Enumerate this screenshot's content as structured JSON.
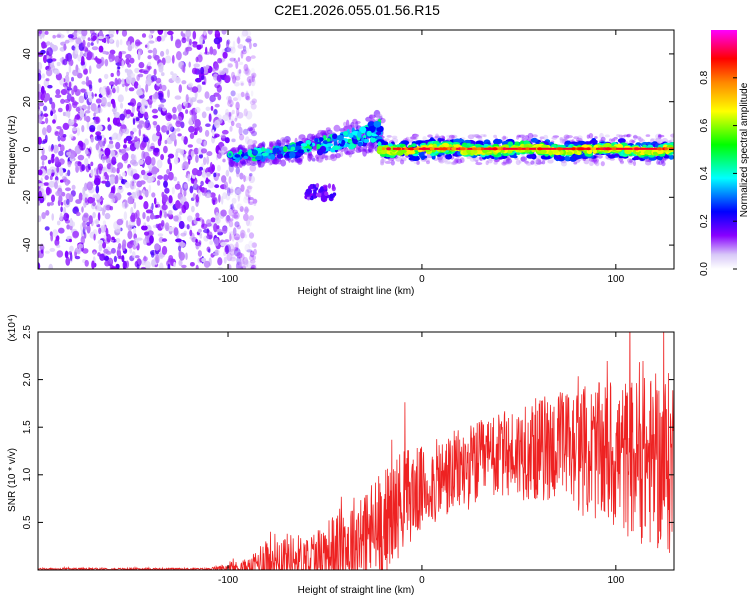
{
  "figure": {
    "title": "C2E1.2026.055.01.56.R15"
  },
  "chart_data": [
    {
      "type": "heatmap",
      "name": "spectrogram",
      "xlabel": "Height of straight line (km)",
      "ylabel": "Frequency (Hz)",
      "xlim": [
        -198,
        130
      ],
      "ylim": [
        -50,
        50
      ],
      "xticks": [
        -100,
        0,
        100
      ],
      "xtick_labels": [
        "-100",
        "0",
        "100"
      ],
      "yticks": [
        -40,
        -20,
        0,
        20,
        40
      ],
      "ytick_labels": [
        "-40",
        "-20",
        "0",
        "20",
        "40"
      ],
      "colorbar": {
        "label": "Normalized spectral amplitude",
        "range": [
          0,
          1
        ],
        "ticks": [
          0,
          0.2,
          0.4,
          0.6,
          0.8
        ],
        "tick_labels": [
          "0.0",
          "0.2",
          "0.4",
          "0.6",
          "0.8"
        ],
        "colormap": [
          "#ffffff",
          "#d8c8f8",
          "#8800ff",
          "#0000ff",
          "#00ffff",
          "#00ff00",
          "#ffff00",
          "#ff8800",
          "#ff0000",
          "#ff00ff"
        ]
      },
      "regions": [
        {
          "name": "noise",
          "x_range": [
            -198,
            -92
          ],
          "y_range": [
            -50,
            50
          ],
          "level": 0.15
        },
        {
          "name": "onset",
          "x_range": [
            -100,
            -20
          ],
          "y_center_start": -3,
          "y_center_end": 8,
          "level": 0.35
        },
        {
          "name": "echo",
          "x_range": [
            -22,
            130
          ],
          "y_center": 0,
          "level": 0.95
        },
        {
          "name": "side-lobe",
          "x_range": [
            -60,
            -45
          ],
          "y_center": -18,
          "level": 0.25
        }
      ]
    },
    {
      "type": "line",
      "name": "snr",
      "xlabel": "Height of straight line (km)",
      "ylabel": "SNR (10 * v/v)",
      "y_multiplier_label": "(x10⁴)",
      "xlim": [
        -198,
        130
      ],
      "ylim": [
        0,
        2.5
      ],
      "xticks": [
        -100,
        0,
        100
      ],
      "xtick_labels": [
        "-100",
        "0",
        "100"
      ],
      "yticks": [
        0.5,
        1.0,
        1.5,
        2.0,
        2.5
      ],
      "ytick_labels": [
        "0.5",
        "1.0",
        "1.5",
        "2.0",
        "2.5"
      ],
      "series": [
        {
          "name": "SNR",
          "color": "#ee2222",
          "envelope": [
            {
              "x": -198,
              "base": 0.01,
              "amp": 0.01
            },
            {
              "x": -110,
              "base": 0.01,
              "amp": 0.01
            },
            {
              "x": -88,
              "base": 0.03,
              "amp": 0.1
            },
            {
              "x": -80,
              "base": 0.12,
              "amp": 0.3
            },
            {
              "x": -60,
              "base": 0.12,
              "amp": 0.25
            },
            {
              "x": -45,
              "base": 0.2,
              "amp": 0.4
            },
            {
              "x": -30,
              "base": 0.35,
              "amp": 0.55
            },
            {
              "x": -20,
              "base": 0.45,
              "amp": 0.6
            },
            {
              "x": -10,
              "base": 0.75,
              "amp": 0.55
            },
            {
              "x": 0,
              "base": 0.85,
              "amp": 0.45
            },
            {
              "x": 20,
              "base": 1.05,
              "amp": 0.45
            },
            {
              "x": 40,
              "base": 1.2,
              "amp": 0.45
            },
            {
              "x": 70,
              "base": 1.3,
              "amp": 0.6
            },
            {
              "x": 100,
              "base": 1.2,
              "amp": 0.8
            },
            {
              "x": 130,
              "base": 1.1,
              "amp": 1.0
            }
          ]
        }
      ]
    }
  ]
}
